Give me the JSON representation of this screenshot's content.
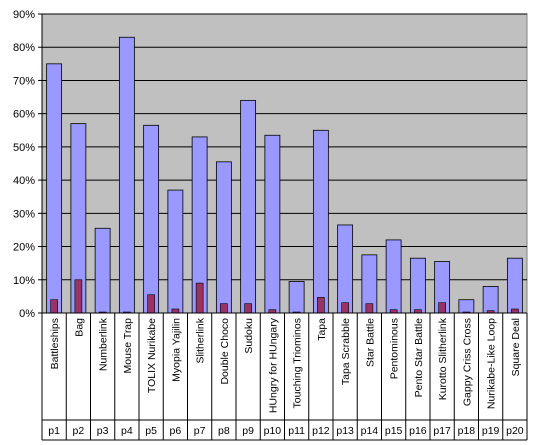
{
  "chart_data": {
    "type": "bar",
    "categories": [
      "Battleships",
      "Bag",
      "Numberlink",
      "Mouse Trap",
      "TOLIX Nurikabe",
      "Myopia Yajilin",
      "Slitherlink",
      "Double Choco",
      "Sudoku",
      "HUngry for HUngary",
      "Touching Triominos",
      "Tapa",
      "Tapa Scrabble",
      "Star Battle",
      "Pentominous",
      "Pento Star Battle",
      "Kurotto Slitherlink",
      "Gappy Criss Cross",
      "Nurikabe-Like Loop",
      "Square Deal"
    ],
    "pages": [
      "p1",
      "p2",
      "p3",
      "p4",
      "p5",
      "p6",
      "p7",
      "p8",
      "p9",
      "p10",
      "p11",
      "p12",
      "p13",
      "p14",
      "p15",
      "p16",
      "p17",
      "p18",
      "p19",
      "p20"
    ],
    "series": [
      {
        "color": "#9999ff",
        "values": [
          75,
          57,
          25.5,
          83,
          56.5,
          37,
          53,
          45.5,
          64,
          53.5,
          9.5,
          55,
          26.5,
          17.5,
          22,
          16.5,
          15.5,
          4,
          8,
          16.5
        ]
      },
      {
        "color": "#993366",
        "values": [
          4,
          10,
          0.3,
          0.3,
          5.5,
          1.2,
          9,
          2.8,
          2.8,
          1,
          0.3,
          4.7,
          3.1,
          2.8,
          1,
          1,
          3.1,
          0.3,
          0.7,
          1.2
        ]
      }
    ],
    "y_tick_labels": [
      "0%",
      "10%",
      "20%",
      "30%",
      "40%",
      "50%",
      "60%",
      "70%",
      "80%",
      "90%"
    ],
    "ylim": [
      0,
      90
    ],
    "y_unit": "percent",
    "plot_background": "#c0c0c0",
    "grid": true,
    "legend": "none"
  }
}
